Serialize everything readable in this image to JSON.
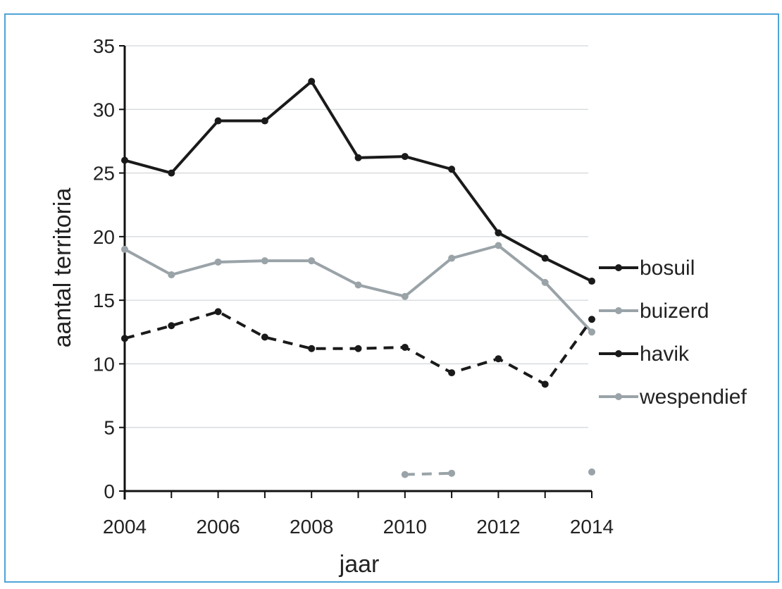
{
  "chart_data": {
    "type": "line",
    "title": "",
    "xlabel": "jaar",
    "ylabel": "aantal territoria",
    "xlim": [
      2004,
      2014
    ],
    "ylim": [
      0,
      35
    ],
    "x_ticks": [
      "2004",
      "2006",
      "2008",
      "2010",
      "2012",
      "2014"
    ],
    "y_ticks": [
      "0",
      "5",
      "10",
      "15",
      "20",
      "25",
      "30",
      "35"
    ],
    "grid": true,
    "legend_position": "right",
    "series": [
      {
        "name": "bosuil",
        "color": "#1a1a1a",
        "dashed": false,
        "points": [
          [
            2004,
            26
          ],
          [
            2005,
            25
          ],
          [
            2006,
            29.1
          ],
          [
            2007,
            29.1
          ],
          [
            2008,
            32.2
          ],
          [
            2009,
            26.2
          ],
          [
            2010,
            26.3
          ],
          [
            2011,
            25.3
          ],
          [
            2012,
            20.3
          ],
          [
            2013,
            18.3
          ],
          [
            2014,
            16.5
          ]
        ]
      },
      {
        "name": "buizerd",
        "color": "#9aa3a8",
        "dashed": false,
        "points": [
          [
            2004,
            19
          ],
          [
            2005,
            17
          ],
          [
            2006,
            18
          ],
          [
            2007,
            18.1
          ],
          [
            2008,
            18.1
          ],
          [
            2009,
            16.2
          ],
          [
            2010,
            15.3
          ],
          [
            2011,
            18.3
          ],
          [
            2012,
            19.3
          ],
          [
            2013,
            16.4
          ],
          [
            2014,
            12.5
          ]
        ]
      },
      {
        "name": "havik",
        "color": "#1a1a1a",
        "dashed": true,
        "points": [
          [
            2004,
            12
          ],
          [
            2005,
            13
          ],
          [
            2006,
            14.1
          ],
          [
            2007,
            12.1
          ],
          [
            2008,
            11.2
          ],
          [
            2009,
            11.2
          ],
          [
            2010,
            11.3
          ],
          [
            2011,
            9.3
          ],
          [
            2012,
            10.4
          ],
          [
            2013,
            8.4
          ],
          [
            2014,
            13.5
          ]
        ]
      },
      {
        "name": "wespendief",
        "color": "#9aa3a8",
        "dashed": true,
        "points": [
          [
            2010,
            1.3
          ],
          [
            2011,
            1.4
          ]
        ],
        "extra_points": [
          [
            2014,
            1.5
          ]
        ]
      }
    ]
  }
}
